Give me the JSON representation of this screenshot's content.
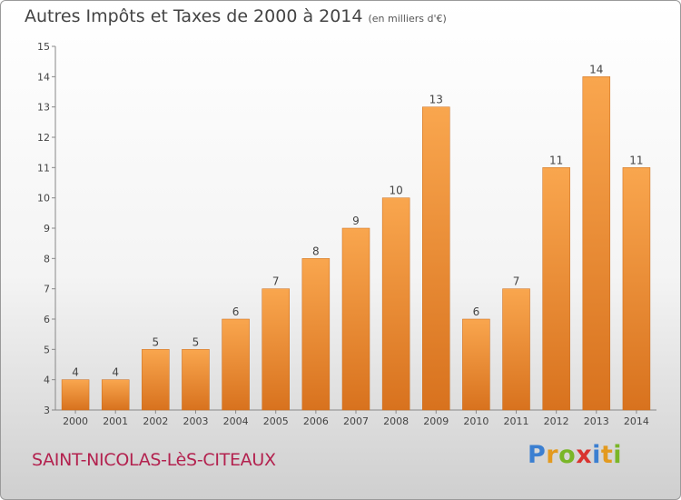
{
  "header": {
    "title": "Autres Impôts et Taxes de 2000 à 2014",
    "subtitle": "(en milliers d'€)"
  },
  "footer": {
    "commune": "SAINT-NICOLAS-LèS-CITEAUX"
  },
  "logo": {
    "text": "Proxiti",
    "letters": [
      {
        "ch": "P",
        "color": "#3b7fd1"
      },
      {
        "ch": "r",
        "color": "#e39a1f"
      },
      {
        "ch": "o",
        "color": "#7ab628"
      },
      {
        "ch": "x",
        "color": "#d9332f"
      },
      {
        "ch": "i",
        "color": "#3b7fd1"
      },
      {
        "ch": "t",
        "color": "#e39a1f"
      },
      {
        "ch": "i",
        "color": "#7ab628"
      }
    ]
  },
  "chart_data": {
    "type": "bar",
    "categories": [
      "2000",
      "2001",
      "2002",
      "2003",
      "2004",
      "2005",
      "2006",
      "2007",
      "2008",
      "2009",
      "2010",
      "2011",
      "2012",
      "2013",
      "2014"
    ],
    "values": [
      4,
      4,
      5,
      5,
      6,
      7,
      8,
      9,
      10,
      13,
      6,
      7,
      11,
      14,
      11
    ],
    "title": "Autres Impôts et Taxes de 2000 à 2014",
    "subtitle": "(en milliers d'€)",
    "ylim": [
      3,
      15
    ],
    "yticks": [
      3,
      4,
      5,
      6,
      7,
      8,
      9,
      10,
      11,
      12,
      13,
      14,
      15
    ],
    "grid": false,
    "bar_color_top": "#f9a64e",
    "bar_color_bottom": "#d8721e"
  }
}
